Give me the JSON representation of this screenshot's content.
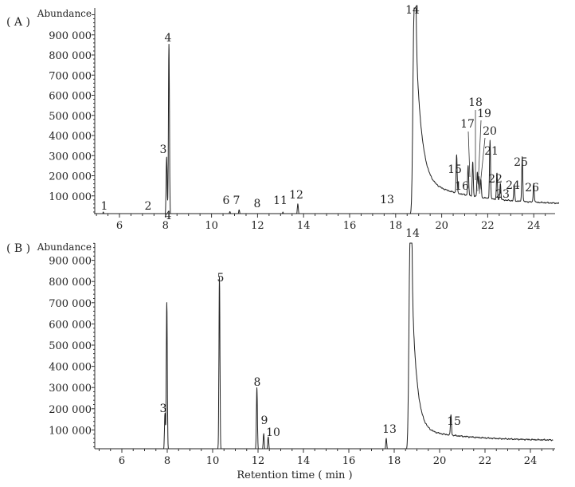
{
  "chart_data": [
    {
      "type": "line",
      "panel_label": "( A )",
      "ylabel": "Abundance",
      "xlabel": "",
      "xlim": [
        4.9,
        25.1
      ],
      "ylim": [
        -10000,
        1000000
      ],
      "xticks": [
        6,
        8,
        10,
        12,
        14,
        16,
        18,
        20,
        22,
        24
      ],
      "yticks": [
        100000,
        200000,
        300000,
        400000,
        500000,
        600000,
        700000,
        800000,
        900000
      ],
      "ytick_labels": [
        "100 000",
        "200 000",
        "300 000",
        "400 000",
        "500 000",
        "600 000",
        "700 000",
        "800 000",
        "900 000"
      ],
      "peaks": [
        {
          "label": "1",
          "rt": 5.3,
          "abundance": 15000
        },
        {
          "label": "2",
          "rt": 7.25,
          "abundance": 9000
        },
        {
          "label": "3",
          "rt": 8.05,
          "abundance": 290000
        },
        {
          "label": "4",
          "rt": 8.15,
          "abundance": 855000
        },
        {
          "label": "6",
          "rt": 10.8,
          "abundance": 20000
        },
        {
          "label": "7",
          "rt": 11.2,
          "abundance": 25000
        },
        {
          "label": "8",
          "rt": 12.1,
          "abundance": 8000
        },
        {
          "label": "11",
          "rt": 13.1,
          "abundance": 15000
        },
        {
          "label": "12",
          "rt": 13.75,
          "abundance": 60000
        },
        {
          "label": "13",
          "rt": 17.9,
          "abundance": 10000
        },
        {
          "label": "14",
          "rt": 18.8,
          "abundance": 1000000
        },
        {
          "label": "15",
          "rt": 20.65,
          "abundance": 190000
        },
        {
          "label": "16",
          "rt": 21.15,
          "abundance": 150000
        },
        {
          "label": "17",
          "rt": 21.35,
          "abundance": 170000
        },
        {
          "label": "18",
          "rt": 21.55,
          "abundance": 125000
        },
        {
          "label": "19",
          "rt": 21.62,
          "abundance": 100000
        },
        {
          "label": "20",
          "rt": 21.7,
          "abundance": 90000
        },
        {
          "label": "21",
          "rt": 22.1,
          "abundance": 290000
        },
        {
          "label": "22",
          "rt": 22.4,
          "abundance": 130000
        },
        {
          "label": "23",
          "rt": 22.55,
          "abundance": 80000
        },
        {
          "label": "24",
          "rt": 23.15,
          "abundance": 80000
        },
        {
          "label": "25",
          "rt": 23.5,
          "abundance": 225000
        },
        {
          "label": "26",
          "rt": 24.0,
          "abundance": 95000
        }
      ]
    },
    {
      "type": "line",
      "panel_label": "( B )",
      "ylabel": "Abundance",
      "xlabel": "Retention time ( min )",
      "xlim": [
        4.9,
        25.0
      ],
      "ylim": [
        -15000,
        1000000
      ],
      "xticks": [
        6,
        8,
        10,
        12,
        14,
        16,
        18,
        20,
        22,
        24
      ],
      "yticks": [
        100000,
        200000,
        300000,
        400000,
        500000,
        600000,
        700000,
        800000,
        900000
      ],
      "ytick_labels": [
        "100 000",
        "200 000",
        "300 000",
        "400 000",
        "500 000",
        "600 000",
        "700 000",
        "800 000",
        "900 000"
      ],
      "peaks": [
        {
          "label": "3",
          "rt": 7.9,
          "abundance": 175000
        },
        {
          "label": "4",
          "rt": 7.98,
          "abundance": 695000
        },
        {
          "label": "5",
          "rt": 10.3,
          "abundance": 815000
        },
        {
          "label": "8",
          "rt": 11.95,
          "abundance": 295000
        },
        {
          "label": "9",
          "rt": 12.25,
          "abundance": 80000
        },
        {
          "label": "10",
          "rt": 12.45,
          "abundance": 65000
        },
        {
          "label": "13",
          "rt": 17.65,
          "abundance": 60000
        },
        {
          "label": "14",
          "rt": 18.7,
          "abundance": 1000000
        },
        {
          "label": "15",
          "rt": 20.5,
          "abundance": 95000
        }
      ]
    }
  ]
}
